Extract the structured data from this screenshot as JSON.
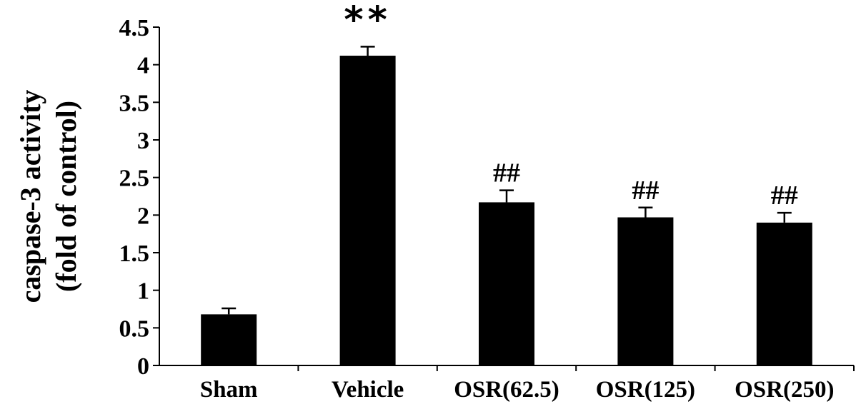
{
  "chart_data": {
    "type": "bar",
    "categories": [
      "Sham",
      "Vehicle",
      "OSR(62.5)",
      "OSR(125)",
      "OSR(250)"
    ],
    "values": [
      0.68,
      4.12,
      2.17,
      1.97,
      1.9
    ],
    "errors": [
      0.08,
      0.12,
      0.16,
      0.13,
      0.13
    ],
    "annotations": [
      "",
      "**",
      "##",
      "##",
      "##"
    ],
    "ylabel_line1": "caspase-3 activity",
    "ylabel_line2": "(fold of control)",
    "ylim": [
      0,
      4.5
    ],
    "yticks": [
      "0",
      "0.5",
      "1",
      "1.5",
      "2",
      "2.5",
      "3",
      "3.5",
      "4",
      "4.5"
    ],
    "bar_color": "#000000",
    "grid": false
  }
}
